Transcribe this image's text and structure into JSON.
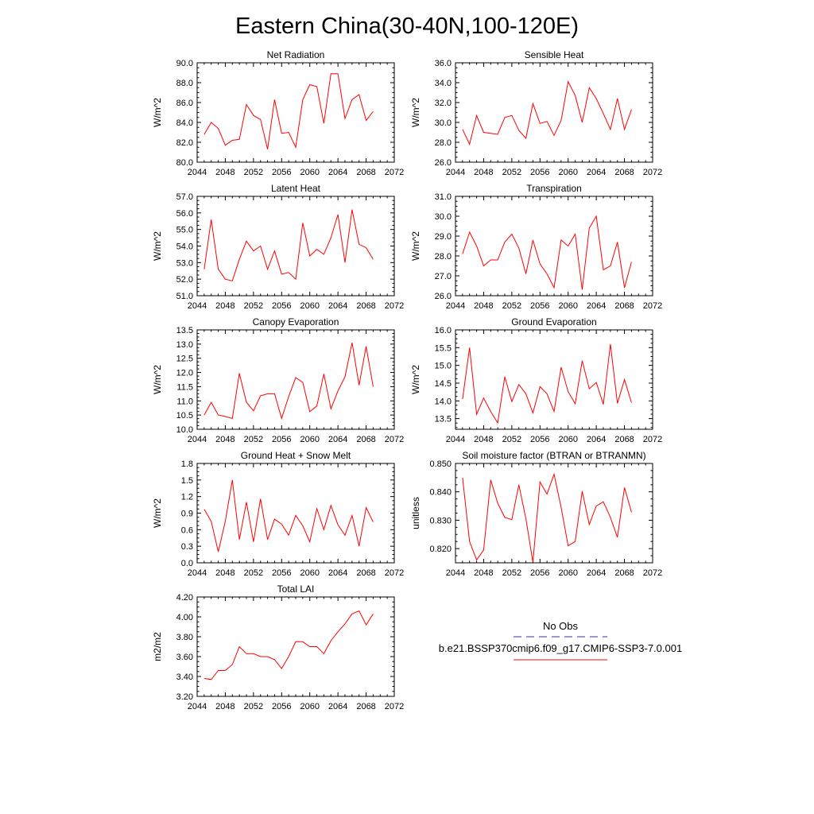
{
  "page_title": "Eastern China(30-40N,100-120E)",
  "colors": {
    "model_line": "#ff0000",
    "obs_line": "#3333aa",
    "axis": "#000000"
  },
  "legend": {
    "obs_label": "No Obs",
    "model_label": "b.e21.BSSP370cmip6.f09_g17.CMIP6-SSP3-7.0.001"
  },
  "chart_data": [
    {
      "type": "line",
      "title": "Net Radiation",
      "ylabel": "W/m^2",
      "xlim": [
        2044,
        2072
      ],
      "ylim": [
        80,
        90
      ],
      "xticks": [
        2044,
        2048,
        2052,
        2056,
        2060,
        2064,
        2068,
        2072
      ],
      "yticks": [
        80,
        82,
        84,
        86,
        88,
        90
      ],
      "ytick_labels": [
        "80.0",
        "82.0",
        "84.0",
        "86.0",
        "88.0",
        "90.0"
      ],
      "x": [
        2045,
        2046,
        2047,
        2048,
        2049,
        2050,
        2051,
        2052,
        2053,
        2054,
        2055,
        2056,
        2057,
        2058,
        2059,
        2060,
        2061,
        2062,
        2063,
        2064,
        2065,
        2066,
        2067,
        2068,
        2069
      ],
      "y": [
        82.8,
        84.0,
        83.4,
        81.7,
        82.2,
        82.3,
        85.8,
        84.7,
        84.3,
        81.3,
        86.3,
        82.9,
        83.0,
        81.5,
        86.3,
        87.8,
        87.6,
        83.9,
        88.9,
        88.9,
        84.4,
        86.3,
        86.8,
        84.2,
        85.1
      ],
      "series_name": "b.e21.BSSP370cmip6.f09_g17.CMIP6-SSP3-7.0.001"
    },
    {
      "type": "line",
      "title": "Sensible Heat",
      "ylabel": "W/m^2",
      "xlim": [
        2044,
        2072
      ],
      "ylim": [
        26,
        36
      ],
      "xticks": [
        2044,
        2048,
        2052,
        2056,
        2060,
        2064,
        2068,
        2072
      ],
      "yticks": [
        26,
        28,
        30,
        32,
        34,
        36
      ],
      "ytick_labels": [
        "26.0",
        "28.0",
        "30.0",
        "32.0",
        "34.0",
        "36.0"
      ],
      "x": [
        2045,
        2046,
        2047,
        2048,
        2049,
        2050,
        2051,
        2052,
        2053,
        2054,
        2055,
        2056,
        2057,
        2058,
        2059,
        2060,
        2061,
        2062,
        2063,
        2064,
        2065,
        2066,
        2067,
        2068,
        2069
      ],
      "y": [
        29.3,
        27.8,
        30.7,
        29.0,
        28.9,
        28.8,
        30.5,
        30.7,
        29.2,
        28.4,
        31.9,
        29.9,
        30.1,
        28.7,
        30.2,
        34.1,
        32.7,
        30.0,
        33.5,
        32.4,
        30.9,
        29.3,
        32.4,
        29.3,
        31.3
      ],
      "series_name": "b.e21.BSSP370cmip6.f09_g17.CMIP6-SSP3-7.0.001"
    },
    {
      "type": "line",
      "title": "Latent Heat",
      "ylabel": "W/m^2",
      "xlim": [
        2044,
        2072
      ],
      "ylim": [
        51,
        57
      ],
      "xticks": [
        2044,
        2048,
        2052,
        2056,
        2060,
        2064,
        2068,
        2072
      ],
      "yticks": [
        51,
        52,
        53,
        54,
        55,
        56,
        57
      ],
      "ytick_labels": [
        "51.0",
        "52.0",
        "53.0",
        "54.0",
        "55.0",
        "56.0",
        "57.0"
      ],
      "x": [
        2045,
        2046,
        2047,
        2048,
        2049,
        2050,
        2051,
        2052,
        2053,
        2054,
        2055,
        2056,
        2057,
        2058,
        2059,
        2060,
        2061,
        2062,
        2063,
        2064,
        2065,
        2066,
        2067,
        2068,
        2069
      ],
      "y": [
        52.6,
        55.6,
        52.6,
        52.0,
        51.9,
        53.2,
        54.3,
        53.7,
        54.0,
        52.6,
        53.7,
        52.3,
        52.4,
        52.0,
        55.4,
        53.4,
        53.8,
        53.5,
        54.5,
        55.9,
        53.0,
        56.2,
        54.1,
        53.9,
        53.2
      ],
      "series_name": "b.e21.BSSP370cmip6.f09_g17.CMIP6-SSP3-7.0.001"
    },
    {
      "type": "line",
      "title": "Transpiration",
      "ylabel": "W/m^2",
      "xlim": [
        2044,
        2072
      ],
      "ylim": [
        26,
        31
      ],
      "xticks": [
        2044,
        2048,
        2052,
        2056,
        2060,
        2064,
        2068,
        2072
      ],
      "yticks": [
        26,
        27,
        28,
        29,
        30,
        31
      ],
      "ytick_labels": [
        "26.0",
        "27.0",
        "28.0",
        "29.0",
        "30.0",
        "31.0"
      ],
      "x": [
        2045,
        2046,
        2047,
        2048,
        2049,
        2050,
        2051,
        2052,
        2053,
        2054,
        2055,
        2056,
        2057,
        2058,
        2059,
        2060,
        2061,
        2062,
        2063,
        2064,
        2065,
        2066,
        2067,
        2068,
        2069
      ],
      "y": [
        28.1,
        29.2,
        28.5,
        27.5,
        27.8,
        27.8,
        28.7,
        29.1,
        28.4,
        27.1,
        28.8,
        27.6,
        27.1,
        26.4,
        28.8,
        28.5,
        29.1,
        26.3,
        29.4,
        30.0,
        27.3,
        27.5,
        28.7,
        26.4,
        27.7
      ],
      "series_name": "b.e21.BSSP370cmip6.f09_g17.CMIP6-SSP3-7.0.001"
    },
    {
      "type": "line",
      "title": "Canopy Evaporation",
      "ylabel": "W/m^2",
      "xlim": [
        2044,
        2072
      ],
      "ylim": [
        10,
        13.5
      ],
      "xticks": [
        2044,
        2048,
        2052,
        2056,
        2060,
        2064,
        2068,
        2072
      ],
      "yticks": [
        10,
        10.5,
        11,
        11.5,
        12,
        12.5,
        13,
        13.5
      ],
      "ytick_labels": [
        "10.0",
        "10.5",
        "11.0",
        "11.5",
        "12.0",
        "12.5",
        "13.0",
        "13.5"
      ],
      "x": [
        2045,
        2046,
        2047,
        2048,
        2049,
        2050,
        2051,
        2052,
        2053,
        2054,
        2055,
        2056,
        2057,
        2058,
        2059,
        2060,
        2061,
        2062,
        2063,
        2064,
        2065,
        2066,
        2067,
        2068,
        2069
      ],
      "y": [
        10.5,
        10.95,
        10.5,
        10.45,
        10.38,
        11.97,
        10.95,
        10.65,
        11.18,
        11.25,
        11.25,
        10.38,
        11.15,
        11.82,
        11.65,
        10.62,
        10.82,
        11.95,
        10.72,
        11.35,
        11.85,
        13.05,
        11.55,
        12.92,
        11.5
      ],
      "series_name": "b.e21.BSSP370cmip6.f09_g17.CMIP6-SSP3-7.0.001"
    },
    {
      "type": "line",
      "title": "Ground Evaporation",
      "ylabel": "W/m^2",
      "xlim": [
        2044,
        2072
      ],
      "ylim": [
        13.2,
        16
      ],
      "xticks": [
        2044,
        2048,
        2052,
        2056,
        2060,
        2064,
        2068,
        2072
      ],
      "yticks": [
        13.5,
        14.0,
        14.5,
        15.0,
        15.5,
        16.0
      ],
      "ytick_labels": [
        "13.5",
        "14.0",
        "14.5",
        "15.0",
        "15.5",
        "16.0"
      ],
      "x": [
        2045,
        2046,
        2047,
        2048,
        2049,
        2050,
        2051,
        2052,
        2053,
        2054,
        2055,
        2056,
        2057,
        2058,
        2059,
        2060,
        2061,
        2062,
        2063,
        2064,
        2065,
        2066,
        2067,
        2068,
        2069
      ],
      "y": [
        14.05,
        15.5,
        13.62,
        14.08,
        13.7,
        13.38,
        14.68,
        13.98,
        14.46,
        14.2,
        13.66,
        14.4,
        14.2,
        13.7,
        14.95,
        14.26,
        13.92,
        15.13,
        14.34,
        14.52,
        13.9,
        15.6,
        13.93,
        14.6,
        13.95
      ],
      "series_name": "b.e21.BSSP370cmip6.f09_g17.CMIP6-SSP3-7.0.001"
    },
    {
      "type": "line",
      "title": "Ground Heat + Snow Melt",
      "ylabel": "W/m^2",
      "xlim": [
        2044,
        2072
      ],
      "ylim": [
        0,
        1.8
      ],
      "xticks": [
        2044,
        2048,
        2052,
        2056,
        2060,
        2064,
        2068,
        2072
      ],
      "yticks": [
        0,
        0.3,
        0.6,
        0.9,
        1.2,
        1.5,
        1.8
      ],
      "ytick_labels": [
        "0.0",
        "0.3",
        "0.6",
        "0.9",
        "1.2",
        "1.5",
        "1.8"
      ],
      "x": [
        2045,
        2046,
        2047,
        2048,
        2049,
        2050,
        2051,
        2052,
        2053,
        2054,
        2055,
        2056,
        2057,
        2058,
        2059,
        2060,
        2061,
        2062,
        2063,
        2064,
        2065,
        2066,
        2067,
        2068,
        2069
      ],
      "y": [
        0.97,
        0.75,
        0.2,
        0.75,
        1.5,
        0.42,
        1.1,
        0.38,
        1.16,
        0.42,
        0.79,
        0.7,
        0.5,
        0.86,
        0.67,
        0.38,
        0.98,
        0.6,
        1.04,
        0.69,
        0.5,
        0.86,
        0.3,
        1.0,
        0.74
      ],
      "series_name": "b.e21.BSSP370cmip6.f09_g17.CMIP6-SSP3-7.0.001"
    },
    {
      "type": "line",
      "title": "Soil moisture factor (BTRAN or BTRANMN)",
      "ylabel": "unitless",
      "xlim": [
        2044,
        2072
      ],
      "ylim": [
        0.815,
        0.85
      ],
      "xticks": [
        2044,
        2048,
        2052,
        2056,
        2060,
        2064,
        2068,
        2072
      ],
      "yticks": [
        0.82,
        0.83,
        0.84,
        0.85
      ],
      "ytick_labels": [
        "0.820",
        "0.830",
        "0.840",
        "0.850"
      ],
      "x": [
        2045,
        2046,
        2047,
        2048,
        2049,
        2050,
        2051,
        2052,
        2053,
        2054,
        2055,
        2056,
        2057,
        2058,
        2059,
        2060,
        2061,
        2062,
        2063,
        2064,
        2065,
        2066,
        2067,
        2068,
        2069
      ],
      "y": [
        0.845,
        0.8225,
        0.816,
        0.8195,
        0.8442,
        0.836,
        0.831,
        0.8302,
        0.8425,
        0.8305,
        0.8152,
        0.8435,
        0.8392,
        0.8462,
        0.8345,
        0.821,
        0.8225,
        0.8402,
        0.8285,
        0.835,
        0.8365,
        0.831,
        0.824,
        0.8415,
        0.8328
      ],
      "series_name": "b.e21.BSSP370cmip6.f09_g17.CMIP6-SSP3-7.0.001"
    },
    {
      "type": "line",
      "title": "Total LAI",
      "ylabel": "m2/m2",
      "xlim": [
        2044,
        2072
      ],
      "ylim": [
        3.2,
        4.2
      ],
      "xticks": [
        2044,
        2048,
        2052,
        2056,
        2060,
        2064,
        2068,
        2072
      ],
      "yticks": [
        3.2,
        3.4,
        3.6,
        3.8,
        4.0,
        4.2
      ],
      "ytick_labels": [
        "3.20",
        "3.40",
        "3.60",
        "3.80",
        "4.00",
        "4.20"
      ],
      "x": [
        2045,
        2046,
        2047,
        2048,
        2049,
        2050,
        2051,
        2052,
        2053,
        2054,
        2055,
        2056,
        2057,
        2058,
        2059,
        2060,
        2061,
        2062,
        2063,
        2064,
        2065,
        2066,
        2067,
        2068,
        2069
      ],
      "y": [
        3.38,
        3.37,
        3.46,
        3.46,
        3.52,
        3.7,
        3.63,
        3.63,
        3.6,
        3.6,
        3.57,
        3.48,
        3.6,
        3.75,
        3.75,
        3.7,
        3.7,
        3.63,
        3.76,
        3.85,
        3.93,
        4.03,
        4.06,
        3.92,
        4.03
      ],
      "series_name": "b.e21.BSSP370cmip6.f09_g17.CMIP6-SSP3-7.0.001"
    }
  ]
}
